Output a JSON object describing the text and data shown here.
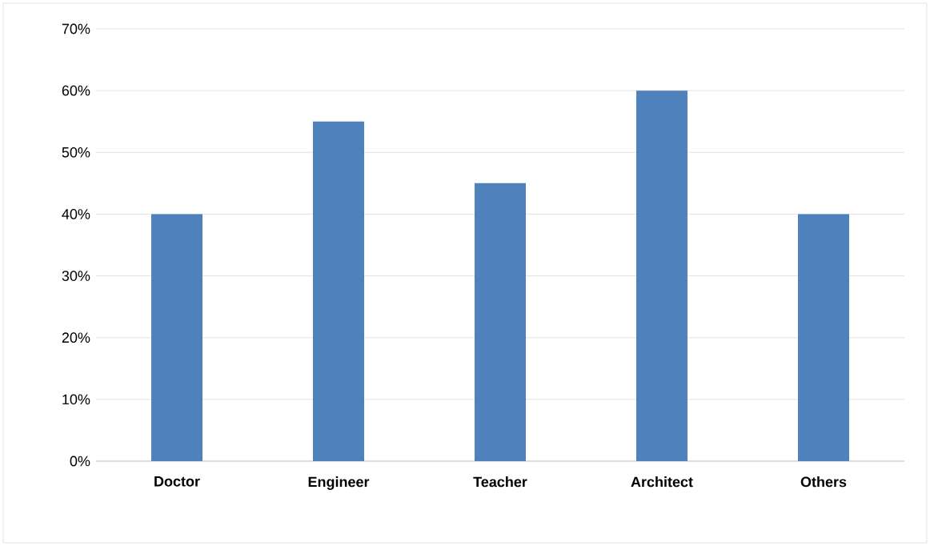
{
  "chart_data": {
    "type": "bar",
    "categories": [
      "Doctor",
      "Engineer",
      "Teacher",
      "Architect",
      "Others"
    ],
    "values": [
      40,
      55,
      45,
      60,
      40
    ],
    "color": "#4f81bd",
    "ylim": [
      0,
      70
    ],
    "yticks": [
      {
        "value": 0,
        "label": "0%"
      },
      {
        "value": 10,
        "label": "10%"
      },
      {
        "value": 20,
        "label": "20%"
      },
      {
        "value": 30,
        "label": "30%"
      },
      {
        "value": 40,
        "label": "40%"
      },
      {
        "value": 50,
        "label": "50%"
      },
      {
        "value": 60,
        "label": "60%"
      },
      {
        "value": 70,
        "label": "70%"
      }
    ],
    "grid": "y"
  }
}
